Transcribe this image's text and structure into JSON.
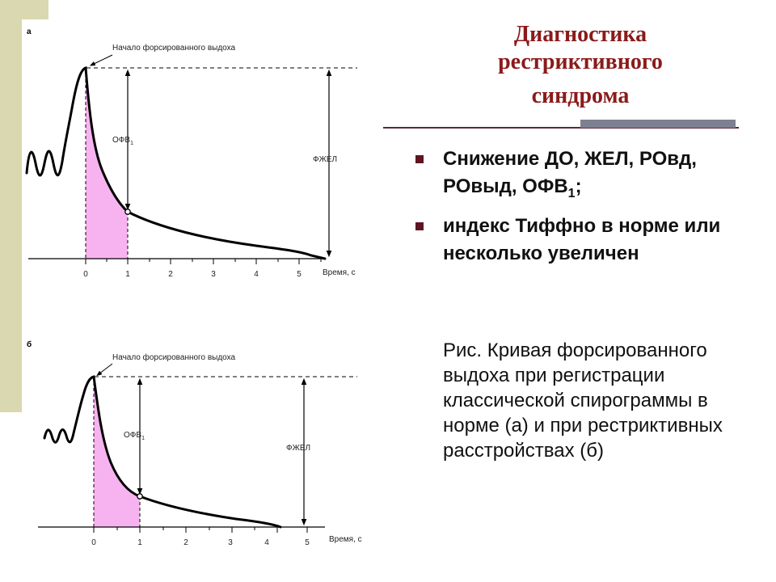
{
  "title": {
    "line1": "Диагностика",
    "line2": "рестриктивного",
    "line3": "синдрома"
  },
  "bullets": [
    {
      "pre": "Снижение ДО, ЖЕЛ, РОвд, РОвыд, ОФВ",
      "sub": "1",
      "post": ";"
    },
    {
      "pre": "индекс Тиффно в норме или несколько увеличен",
      "sub": "",
      "post": ""
    }
  ],
  "caption": "Рис. Кривая форсированного выдоха при регистрации классической спирограммы в норме (а) и при рестриктивных расстройствах (б)",
  "colors": {
    "title": "#8b1a1a",
    "bullet_marker": "#5c1622",
    "shaded_area": "#f7b3f0",
    "left_band": "#d9d8b0"
  },
  "panels": [
    {
      "label": "а",
      "annotation": "Начало форсированного выдоха",
      "fev_label": "ОФВ",
      "fev_sub": "1",
      "fvc_label": "ФЖЕЛ",
      "xlabel": "Время, с",
      "ticks": [
        "0",
        "1",
        "2",
        "3",
        "4",
        "5"
      ]
    },
    {
      "label": "б",
      "annotation": "Начало форсированного выдоха",
      "fev_label": "ОФВ",
      "fev_sub": "1",
      "fvc_label": "ФЖЕЛ",
      "xlabel": "Время, с",
      "ticks": [
        "0",
        "1",
        "2",
        "3",
        "4",
        "5"
      ]
    }
  ]
}
